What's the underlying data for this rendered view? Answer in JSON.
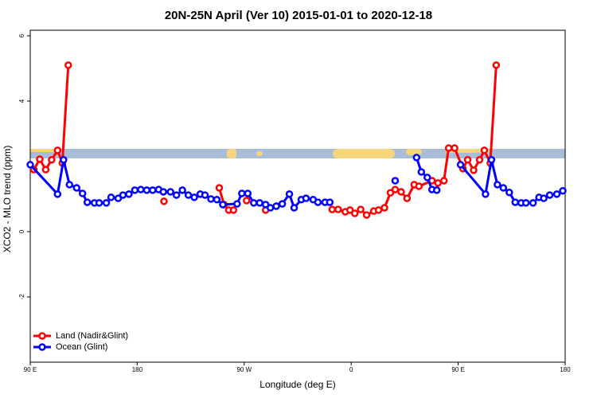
{
  "chart_data": {
    "type": "line",
    "title": "20N-25N April (Ver 10)   2015-01-01 to 2020-12-18",
    "x_label": "Longitude (deg E)",
    "y_label": "XCO2 - MLO trend (ppm)",
    "xlim": [
      90,
      540
    ],
    "ylim": [
      -4,
      6.17
    ],
    "xticks": [
      {
        "value": 90,
        "label": "90 E"
      },
      {
        "value": 180,
        "label": "180"
      },
      {
        "value": 270,
        "label": "90 W"
      },
      {
        "value": 360,
        "label": "0"
      },
      {
        "value": 450,
        "label": "90 E"
      },
      {
        "value": 540,
        "label": "180"
      }
    ],
    "yticks": [
      -2,
      0,
      4,
      6
    ],
    "legend": "bottom-left",
    "series": [
      {
        "name": "Land (Nadir&Glint)",
        "color": "#ff0000",
        "x": [
          93,
          98,
          103,
          108,
          113,
          117,
          122,
          null,
          202.5,
          null,
          249,
          253,
          257,
          261,
          null,
          272,
          null,
          288,
          null,
          344,
          349,
          355,
          359,
          363,
          368,
          373,
          379,
          383,
          388,
          393,
          397,
          402,
          407,
          413,
          417,
          428,
          433,
          438,
          442,
          447,
          454,
          458,
          463,
          468,
          472,
          477,
          482
        ],
        "values": [
          1.9,
          2.22,
          1.9,
          2.2,
          2.49,
          2.1,
          5.1,
          null,
          0.93,
          null,
          1.34,
          0.83,
          0.66,
          0.66,
          null,
          0.95,
          null,
          0.66,
          null,
          0.68,
          0.68,
          0.61,
          0.66,
          0.56,
          0.68,
          0.51,
          0.63,
          0.66,
          0.73,
          1.19,
          1.29,
          1.22,
          1.02,
          1.44,
          1.39,
          1.56,
          1.49,
          1.56,
          2.56,
          2.56,
          1.93,
          2.2,
          1.88,
          2.2,
          2.49,
          2.1,
          5.1
        ]
      },
      {
        "name": "Ocean (Glint)",
        "color": "#0000ff",
        "x": [
          90,
          113,
          118,
          123,
          129,
          134,
          138,
          144,
          148,
          154,
          158,
          164,
          168,
          173,
          178,
          183,
          188,
          193,
          198,
          202,
          208,
          213,
          218,
          223,
          228,
          233,
          237,
          242,
          247,
          252,
          264,
          268,
          273,
          278,
          283,
          288,
          292,
          297,
          302,
          308,
          312,
          318,
          322,
          328,
          332,
          338,
          342,
          null,
          397,
          null,
          415,
          419,
          424,
          428,
          432,
          null,
          452,
          473,
          478,
          483,
          488,
          493,
          498,
          503,
          507,
          513,
          518,
          522,
          527,
          533,
          538
        ],
        "values": [
          2.05,
          1.15,
          2.2,
          1.44,
          1.34,
          1.17,
          0.9,
          0.88,
          0.88,
          0.88,
          1.05,
          1.02,
          1.12,
          1.15,
          1.27,
          1.29,
          1.27,
          1.27,
          1.29,
          1.22,
          1.22,
          1.12,
          1.27,
          1.12,
          1.05,
          1.15,
          1.12,
          1.0,
          0.98,
          0.83,
          0.85,
          1.17,
          1.17,
          0.88,
          0.88,
          0.83,
          0.73,
          0.78,
          0.85,
          1.15,
          0.73,
          0.98,
          1.02,
          0.98,
          0.9,
          0.9,
          0.9,
          null,
          1.56,
          null,
          2.27,
          1.83,
          1.66,
          1.29,
          1.27,
          null,
          2.05,
          1.15,
          2.2,
          1.44,
          1.34,
          1.2,
          0.9,
          0.88,
          0.88,
          0.88,
          1.05,
          1.02,
          1.12,
          1.15,
          1.25
        ]
      }
    ]
  }
}
